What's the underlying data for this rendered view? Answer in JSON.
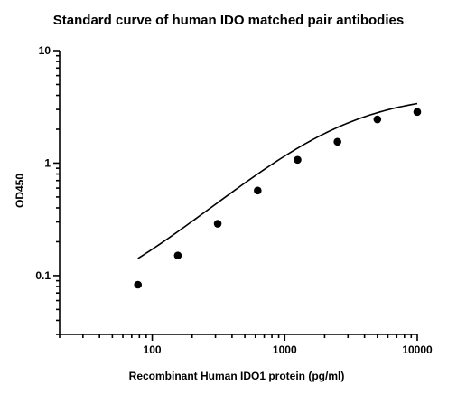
{
  "chart_data": {
    "type": "scatter",
    "title": "Standard curve of human IDO matched pair antibodies",
    "xlabel": "Recombinant Human IDO1 protein (pg/ml)",
    "ylabel": "OD450",
    "xscale": "log",
    "yscale": "log",
    "xlim": [
      20,
      10000
    ],
    "ylim": [
      0.03,
      10
    ],
    "x_ticks": [
      100,
      1000,
      10000
    ],
    "x_tick_labels": [
      "100",
      "1000",
      "10000"
    ],
    "y_ticks": [
      0.1,
      1,
      10
    ],
    "y_tick_labels": [
      "0.1",
      "1",
      "10"
    ],
    "grid": false,
    "legend": "none",
    "marker_color": "#000000",
    "curve_color": "#000000",
    "series": [
      {
        "x": [
          78,
          156,
          312,
          625,
          1250,
          2500,
          5000,
          10000
        ],
        "y": [
          0.083,
          0.151,
          0.289,
          0.57,
          1.07,
          1.55,
          2.45,
          2.85
        ],
        "fit": "4PL",
        "fit_params": {
          "bottom": 0.04,
          "top": 4.2,
          "ec50": 2600,
          "hill": 1.05
        }
      }
    ]
  }
}
